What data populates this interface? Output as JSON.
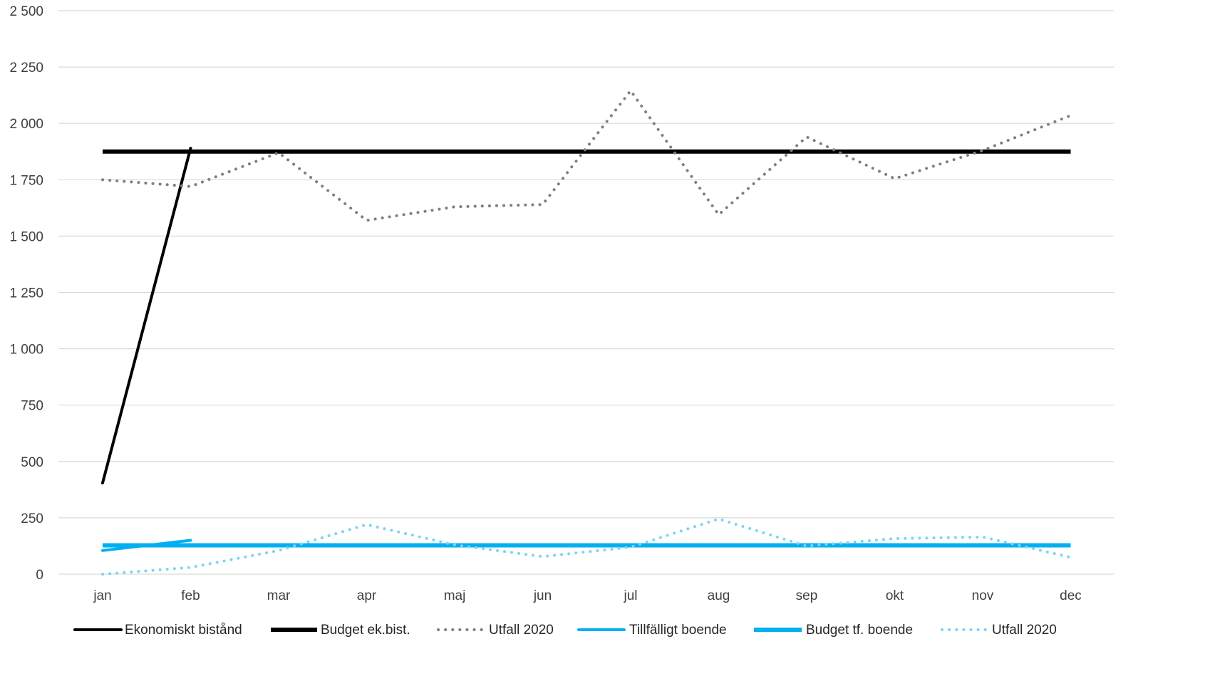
{
  "chart_data": {
    "type": "line",
    "categories": [
      "jan",
      "feb",
      "mar",
      "apr",
      "maj",
      "jun",
      "jul",
      "aug",
      "sep",
      "okt",
      "nov",
      "dec"
    ],
    "ylim": [
      0,
      2500
    ],
    "yticks": [
      0,
      250,
      500,
      750,
      1000,
      1250,
      1500,
      1750,
      2000,
      2250,
      2500
    ],
    "ytick_labels": [
      "0",
      "250",
      "500",
      "750",
      "1 000",
      "1 250",
      "1 500",
      "1 750",
      "2 000",
      "2 250",
      "2 500"
    ],
    "grid": true,
    "legend_position": "bottom",
    "series": [
      {
        "name": "Ekonomiskt bistånd",
        "values": [
          405,
          1890,
          null,
          null,
          null,
          null,
          null,
          null,
          null,
          null,
          null,
          null
        ],
        "color": "#000000",
        "style": "solid"
      },
      {
        "name": "Budget ek.bist.",
        "values": [
          1875,
          1875,
          1875,
          1875,
          1875,
          1875,
          1875,
          1875,
          1875,
          1875,
          1875,
          1875
        ],
        "color": "#000000",
        "style": "solid-thick"
      },
      {
        "name": "Utfall 2020",
        "values": [
          1750,
          1720,
          1870,
          1570,
          1630,
          1640,
          2145,
          1595,
          1940,
          1755,
          1880,
          2035
        ],
        "color": "#7f7f7f",
        "style": "dotted"
      },
      {
        "name": "Tillfälligt boende",
        "values": [
          105,
          150,
          null,
          null,
          null,
          null,
          null,
          null,
          null,
          null,
          null,
          null
        ],
        "color": "#00b0f0",
        "style": "solid"
      },
      {
        "name": "Budget tf. boende",
        "values": [
          128,
          128,
          128,
          128,
          128,
          128,
          128,
          128,
          128,
          128,
          128,
          128
        ],
        "color": "#00b0f0",
        "style": "solid-thick"
      },
      {
        "name": "Utfall 2020",
        "values": [
          0,
          30,
          105,
          220,
          130,
          78,
          120,
          245,
          125,
          158,
          165,
          75
        ],
        "color": "#7fd3f5",
        "style": "dotted"
      }
    ]
  }
}
